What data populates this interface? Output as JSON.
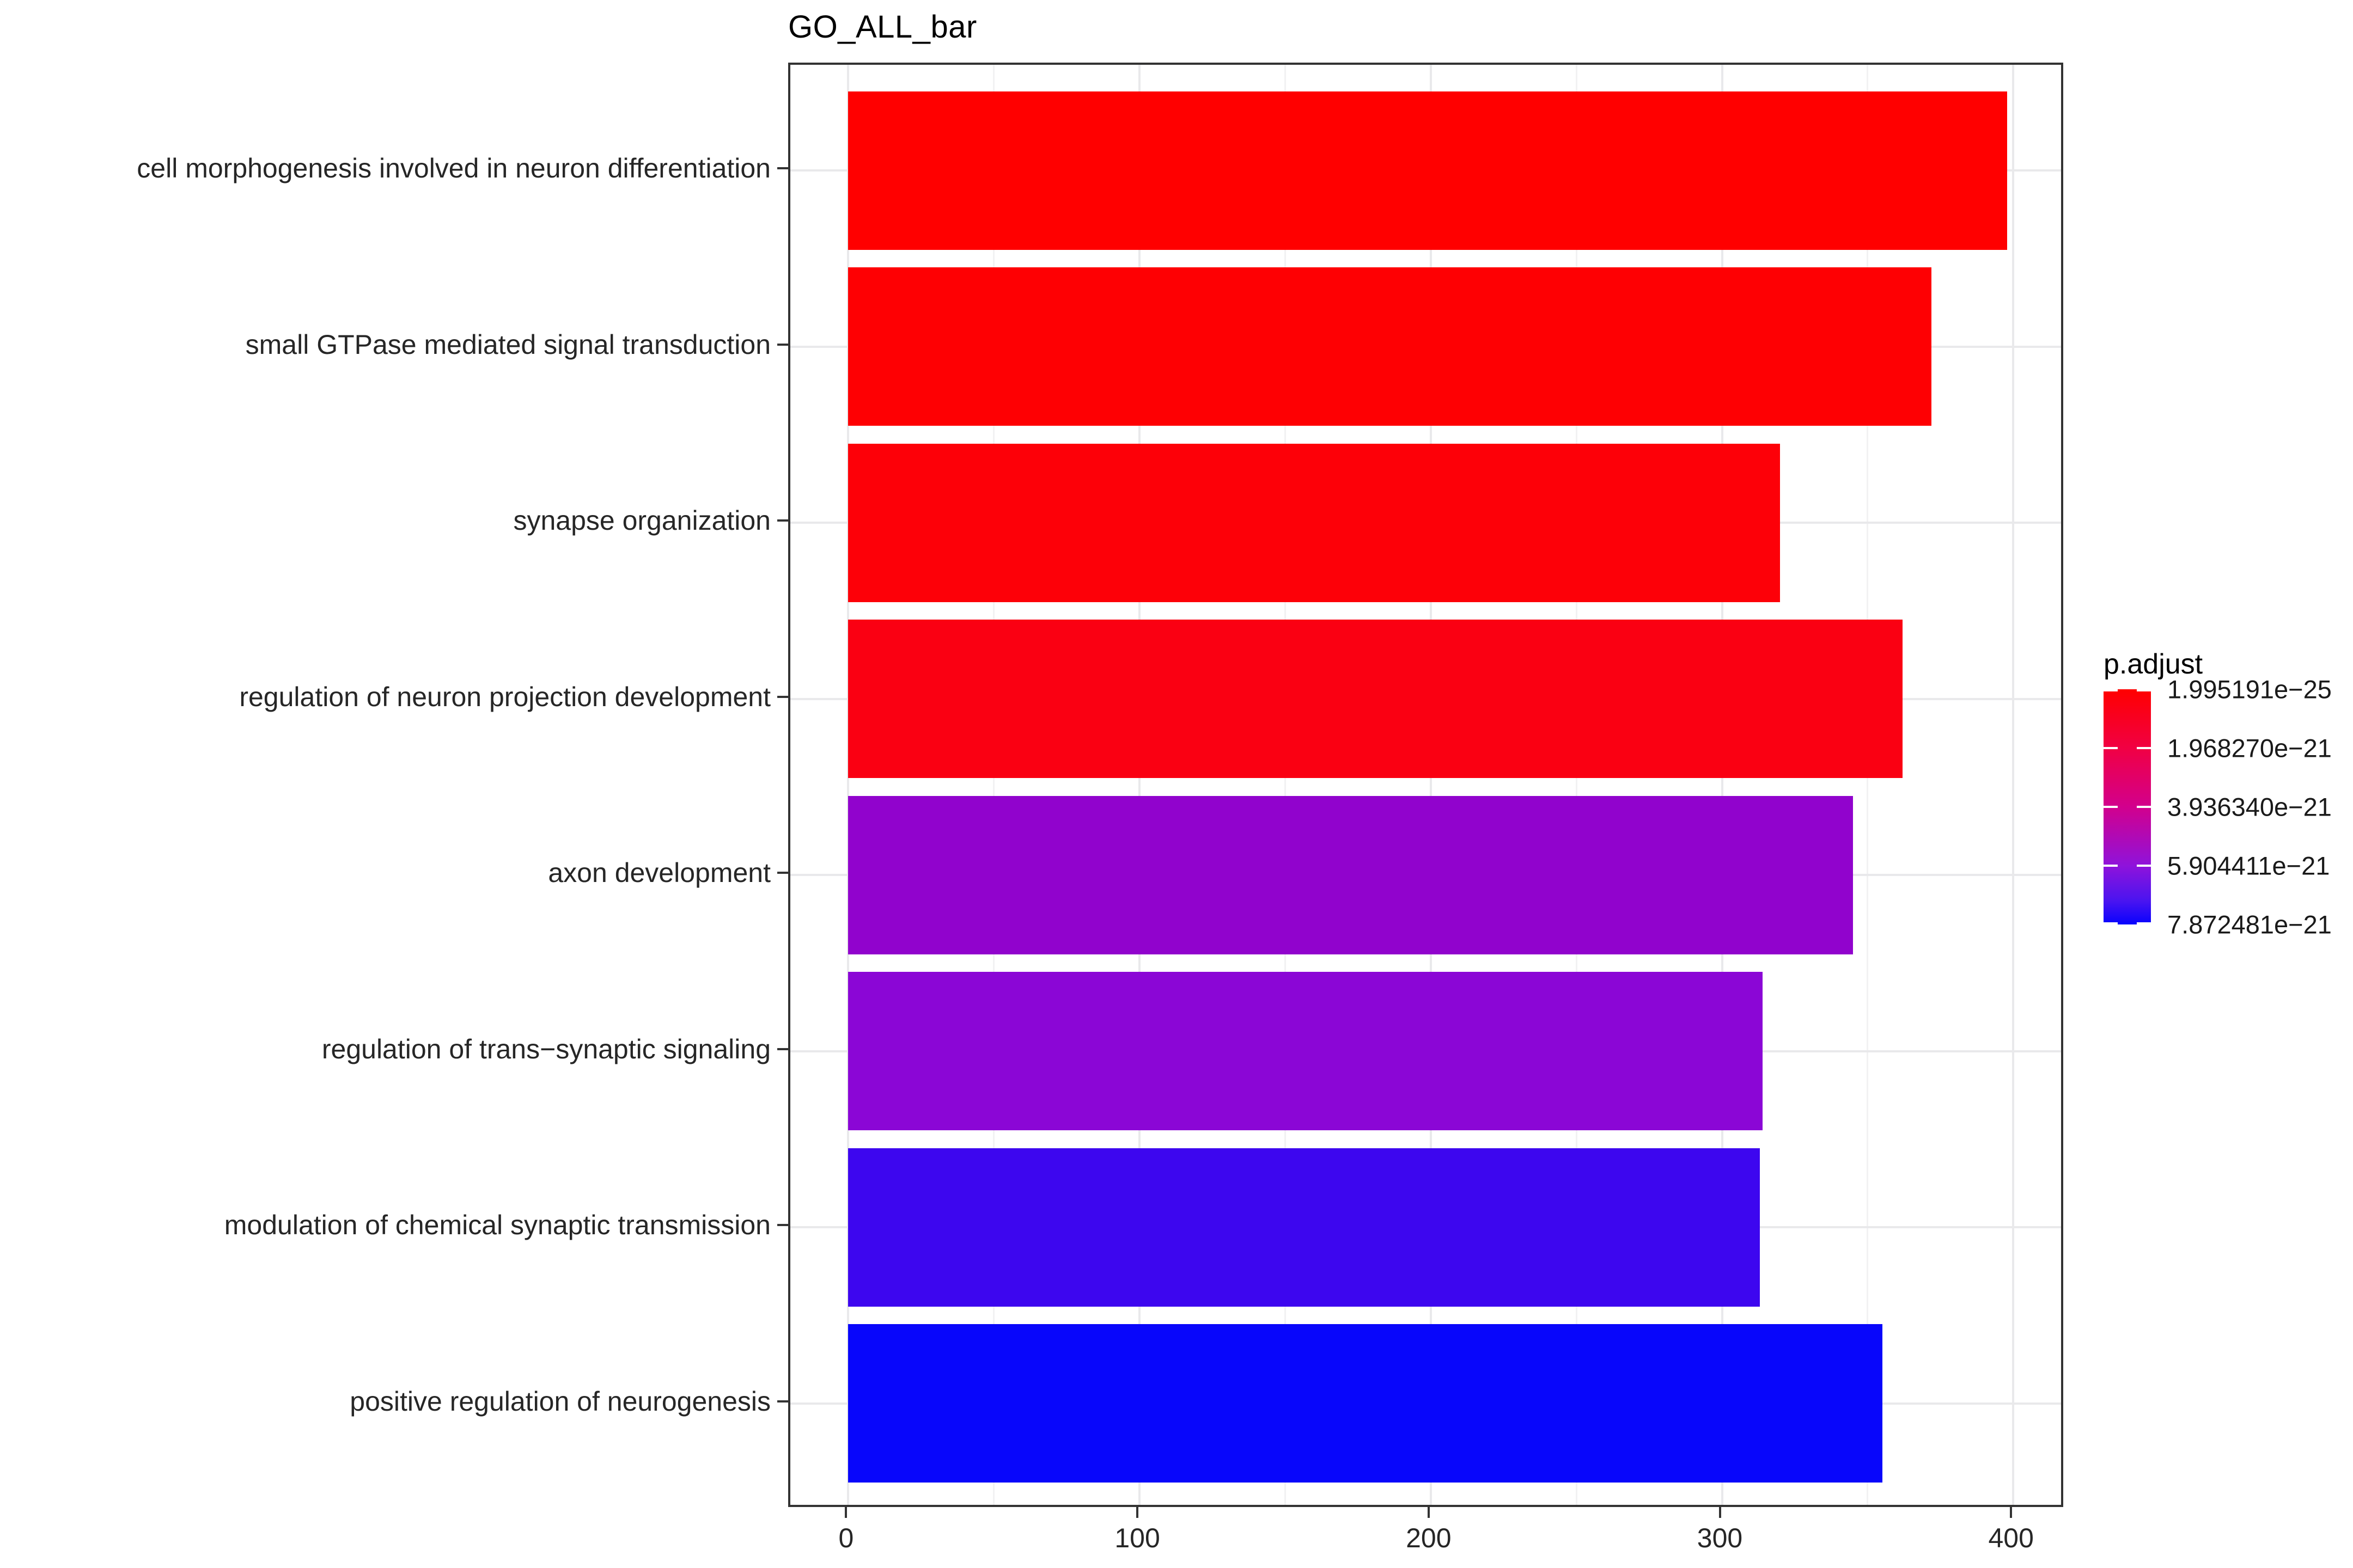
{
  "title": "GO_ALL_bar",
  "chart_data": {
    "type": "bar",
    "orientation": "horizontal",
    "title": "GO_ALL_bar",
    "xlabel": "",
    "ylabel": "",
    "grid": true,
    "legend_position": "right",
    "categories": [
      "cell morphogenesis involved in neuron differentiation",
      "small GTPase mediated signal transduction",
      "synapse organization",
      "regulation of neuron projection development",
      "axon development",
      "regulation of trans−synaptic signaling",
      "modulation of chemical synaptic transmission",
      "positive regulation of neurogenesis"
    ],
    "values": [
      398,
      372,
      320,
      362,
      345,
      314,
      313,
      355
    ],
    "bar_colors": [
      "#FF0000",
      "#FE0003",
      "#FD0008",
      "#FA0012",
      "#9103CD",
      "#8B06D6",
      "#3D06EF",
      "#0806FB"
    ],
    "xlim": [
      -20,
      418
    ],
    "x_ticks": [
      0,
      100,
      200,
      300,
      400
    ],
    "x_tick_labels": [
      "0",
      "100",
      "200",
      "300",
      "400"
    ],
    "x_minor_ticks": [
      50,
      150,
      250,
      350
    ],
    "legend": {
      "title": "p.adjust",
      "tick_labels": [
        "1.995191e−25",
        "1.968270e−21",
        "3.936340e−21",
        "5.904411e−21",
        "7.872481e−21"
      ],
      "gradient_stops": [
        "#FF0000",
        "#F10043",
        "#D2008D",
        "#8F13DB",
        "#4A14F0",
        "#0802FE"
      ],
      "gradient_stop_positions": [
        0,
        0.25,
        0.5,
        0.75,
        0.9,
        1.0
      ]
    }
  },
  "colors": {
    "background": "#FFFFFF",
    "panel_border": "#333333",
    "grid_major": "#E9E9EB",
    "grid_minor": "#F2F2F3",
    "axis_tick": "#333333",
    "axis_text": "#262626",
    "title_text": "#000000",
    "legend_text": "#1A1A1A",
    "legend_tick": "#FFFFFF"
  }
}
